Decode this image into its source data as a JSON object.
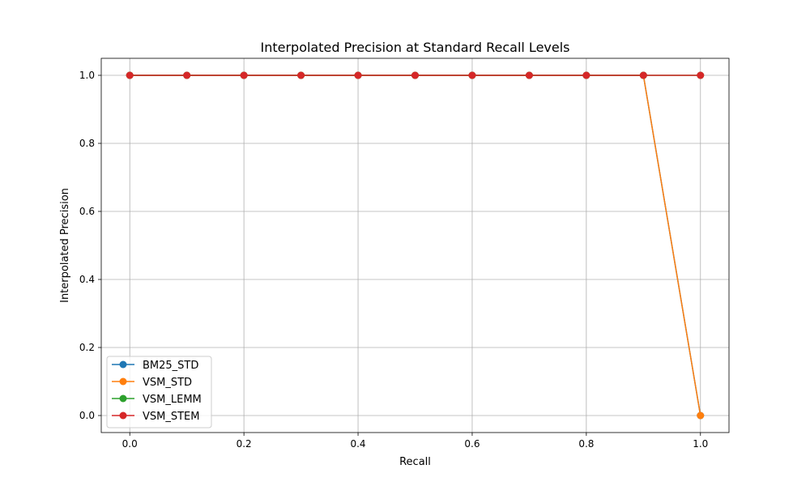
{
  "chart_data": {
    "type": "line",
    "title": "Interpolated Precision at Standard Recall Levels",
    "xlabel": "Recall",
    "ylabel": "Interpolated Precision",
    "xlim": [
      -0.05,
      1.05
    ],
    "ylim": [
      -0.05,
      1.05
    ],
    "grid": true,
    "legend_position": "lower-left",
    "x": [
      0.0,
      0.1,
      0.2,
      0.3,
      0.4,
      0.5,
      0.6,
      0.7,
      0.8,
      0.9,
      1.0
    ],
    "xticks": [
      0.0,
      0.2,
      0.4,
      0.6,
      0.8,
      1.0
    ],
    "xtick_labels": [
      "0.0",
      "0.2",
      "0.4",
      "0.6",
      "0.8",
      "1.0"
    ],
    "yticks": [
      0.0,
      0.2,
      0.4,
      0.6,
      0.8,
      1.0
    ],
    "ytick_labels": [
      "0.0",
      "0.2",
      "0.4",
      "0.6",
      "0.8",
      "1.0"
    ],
    "series": [
      {
        "name": "BM25_STD",
        "color": "#1f77b4",
        "marker": "circle",
        "values": [
          1.0,
          1.0,
          1.0,
          1.0,
          1.0,
          1.0,
          1.0,
          1.0,
          1.0,
          1.0,
          0.0
        ]
      },
      {
        "name": "VSM_STD",
        "color": "#ff7f0e",
        "marker": "circle",
        "values": [
          1.0,
          1.0,
          1.0,
          1.0,
          1.0,
          1.0,
          1.0,
          1.0,
          1.0,
          1.0,
          0.0
        ]
      },
      {
        "name": "VSM_LEMM",
        "color": "#2ca02c",
        "marker": "circle",
        "values": [
          1.0,
          1.0,
          1.0,
          1.0,
          1.0,
          1.0,
          1.0,
          1.0,
          1.0,
          1.0,
          1.0
        ]
      },
      {
        "name": "VSM_STEM",
        "color": "#d62728",
        "marker": "circle",
        "values": [
          1.0,
          1.0,
          1.0,
          1.0,
          1.0,
          1.0,
          1.0,
          1.0,
          1.0,
          1.0,
          1.0
        ]
      }
    ]
  }
}
